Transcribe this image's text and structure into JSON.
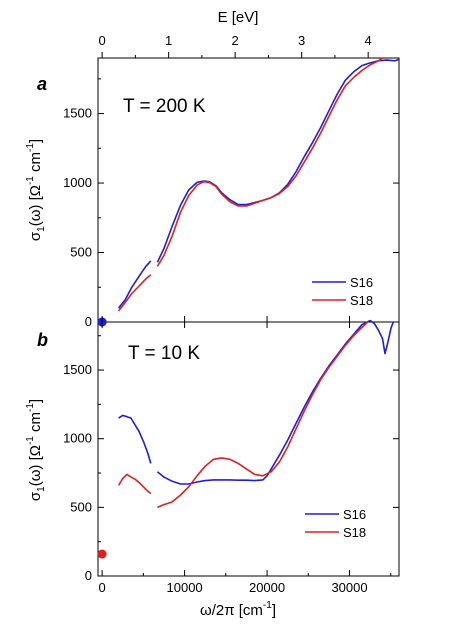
{
  "chart_data": {
    "type": "line",
    "top_axis": {
      "label": "E [eV]",
      "ticks": [
        {
          "value": 0,
          "label": "0"
        },
        {
          "value": 1,
          "label": "1"
        },
        {
          "value": 2,
          "label": "2"
        },
        {
          "value": 3,
          "label": "3"
        },
        {
          "value": 4,
          "label": "4"
        }
      ]
    },
    "x_axis": {
      "label_main": "ω/2π [cm",
      "label_sup": "-1",
      "label_end": "]",
      "range": [
        -500,
        36000
      ],
      "ticks": [
        {
          "value": 0,
          "label": "0"
        },
        {
          "value": 10000,
          "label": "10000"
        },
        {
          "value": 20000,
          "label": "20000"
        },
        {
          "value": 30000,
          "label": "30000"
        }
      ]
    },
    "y_axis_label": {
      "sigma": "σ",
      "sub": "1",
      "omega": "(ω) [Ω",
      "sup1": "-1",
      "cm": " cm",
      "sup2": "-1",
      "end": "]"
    },
    "panels": [
      {
        "letter": "a",
        "temperature": "T = 200 K",
        "ylim": [
          0,
          1900
        ],
        "yticks": [
          {
            "value": 0,
            "label": "0"
          },
          {
            "value": 500,
            "label": "500"
          },
          {
            "value": 1000,
            "label": "1000"
          },
          {
            "value": 1500,
            "label": "1500"
          }
        ],
        "series": [
          {
            "name": "S16",
            "color": "#1f1fd6",
            "segments": [
              [
                [
                  2000,
                  100
                ],
                [
                  2800,
                  160
                ],
                [
                  3600,
                  250
                ],
                [
                  4500,
                  330
                ],
                [
                  5300,
                  400
                ],
                [
                  5900,
                  440
                ]
              ],
              [
                [
                  6700,
                  430
                ],
                [
                  7500,
                  530
                ],
                [
                  8500,
                  690
                ],
                [
                  9500,
                  840
                ],
                [
                  10500,
                  950
                ],
                [
                  11500,
                  1005
                ],
                [
                  12300,
                  1015
                ],
                [
                  13000,
                  1010
                ],
                [
                  13800,
                  980
                ],
                [
                  14500,
                  930
                ],
                [
                  15500,
                  880
                ],
                [
                  16500,
                  845
                ],
                [
                  17500,
                  845
                ],
                [
                  18500,
                  860
                ],
                [
                  19500,
                  875
                ],
                [
                  20500,
                  895
                ],
                [
                  21500,
                  930
                ],
                [
                  22500,
                  990
                ],
                [
                  23500,
                  1080
                ],
                [
                  24500,
                  1190
                ],
                [
                  25500,
                  1290
                ],
                [
                  26500,
                  1400
                ],
                [
                  27500,
                  1520
                ],
                [
                  28500,
                  1640
                ],
                [
                  29500,
                  1740
                ],
                [
                  30500,
                  1800
                ],
                [
                  31500,
                  1845
                ],
                [
                  32500,
                  1865
                ],
                [
                  33500,
                  1880
                ],
                [
                  34500,
                  1885
                ],
                [
                  35500,
                  1880
                ],
                [
                  36000,
                  1890
                ]
              ]
            ]
          },
          {
            "name": "S18",
            "color": "#e02020",
            "segments": [
              [
                [
                  2000,
                  80
                ],
                [
                  2800,
                  140
                ],
                [
                  3600,
                  205
                ],
                [
                  4500,
                  260
                ],
                [
                  5300,
                  310
                ],
                [
                  5900,
                  340
                ]
              ],
              [
                [
                  6700,
                  400
                ],
                [
                  7500,
                  480
                ],
                [
                  8500,
                  620
                ],
                [
                  9500,
                  790
                ],
                [
                  10500,
                  910
                ],
                [
                  11500,
                  985
                ],
                [
                  12300,
                  1010
                ],
                [
                  13000,
                  1005
                ],
                [
                  13800,
                  975
                ],
                [
                  14500,
                  920
                ],
                [
                  15500,
                  865
                ],
                [
                  16500,
                  835
                ],
                [
                  17500,
                  835
                ],
                [
                  18500,
                  855
                ],
                [
                  19500,
                  875
                ],
                [
                  20500,
                  895
                ],
                [
                  21500,
                  925
                ],
                [
                  22500,
                  975
                ],
                [
                  23500,
                  1050
                ],
                [
                  24500,
                  1150
                ],
                [
                  25500,
                  1250
                ],
                [
                  26500,
                  1360
                ],
                [
                  27500,
                  1480
                ],
                [
                  28500,
                  1600
                ],
                [
                  29500,
                  1700
                ],
                [
                  30500,
                  1760
                ],
                [
                  31500,
                  1810
                ],
                [
                  32500,
                  1850
                ],
                [
                  33500,
                  1880
                ],
                [
                  34000,
                  1900
                ]
              ]
            ]
          }
        ],
        "dc_points": [
          {
            "x": 0,
            "y": 0,
            "color": "#e02020"
          }
        ],
        "legend": [
          {
            "label": "S16",
            "color": "#1f1fd6"
          },
          {
            "label": "S18",
            "color": "#e02020"
          }
        ]
      },
      {
        "letter": "b",
        "temperature": "T = 10 K",
        "ylim": [
          0,
          1850
        ],
        "yticks": [
          {
            "value": 0,
            "label": "0"
          },
          {
            "value": 500,
            "label": "500"
          },
          {
            "value": 1000,
            "label": "1000"
          },
          {
            "value": 1500,
            "label": "1500"
          }
        ],
        "series": [
          {
            "name": "S16",
            "color": "#1f1fd6",
            "segments": [
              [
                [
                  2000,
                  1150
                ],
                [
                  2500,
                  1170
                ],
                [
                  3000,
                  1160
                ],
                [
                  3500,
                  1150
                ],
                [
                  4000,
                  1100
                ],
                [
                  4500,
                  1050
                ],
                [
                  5000,
                  980
                ],
                [
                  5500,
                  900
                ],
                [
                  5900,
                  820
                ]
              ],
              [
                [
                  6700,
                  760
                ],
                [
                  7500,
                  720
                ],
                [
                  8500,
                  690
                ],
                [
                  9500,
                  670
                ],
                [
                  10500,
                  670
                ],
                [
                  11500,
                  685
                ],
                [
                  12500,
                  695
                ],
                [
                  13500,
                  700
                ],
                [
                  14500,
                  700
                ],
                [
                  15500,
                  700
                ],
                [
                  16500,
                  698
                ],
                [
                  17500,
                  698
                ],
                [
                  18500,
                  695
                ],
                [
                  19500,
                  700
                ],
                [
                  20000,
                  730
                ],
                [
                  20500,
                  780
                ],
                [
                  21500,
                  880
                ],
                [
                  22500,
                  990
                ],
                [
                  23500,
                  1110
                ],
                [
                  24500,
                  1230
                ],
                [
                  25500,
                  1340
                ],
                [
                  26500,
                  1440
                ],
                [
                  27500,
                  1530
                ],
                [
                  28500,
                  1610
                ],
                [
                  29500,
                  1690
                ],
                [
                  30500,
                  1760
                ],
                [
                  31500,
                  1830
                ],
                [
                  32500,
                  1860
                ],
                [
                  33000,
                  1840
                ],
                [
                  33500,
                  1790
                ],
                [
                  34000,
                  1730
                ],
                [
                  34300,
                  1620
                ],
                [
                  34600,
                  1690
                ],
                [
                  35000,
                  1800
                ],
                [
                  35300,
                  1850
                ]
              ]
            ]
          },
          {
            "name": "S18",
            "color": "#e02020",
            "segments": [
              [
                [
                  2000,
                  660
                ],
                [
                  2500,
                  710
                ],
                [
                  3000,
                  740
                ],
                [
                  3500,
                  720
                ],
                [
                  4000,
                  705
                ],
                [
                  4500,
                  680
                ],
                [
                  5000,
                  650
                ],
                [
                  5500,
                  620
                ],
                [
                  5900,
                  600
                ]
              ],
              [
                [
                  6700,
                  500
                ],
                [
                  7500,
                  520
                ],
                [
                  8500,
                  540
                ],
                [
                  9500,
                  590
                ],
                [
                  10500,
                  650
                ],
                [
                  11500,
                  730
                ],
                [
                  12500,
                  800
                ],
                [
                  13500,
                  850
                ],
                [
                  14500,
                  860
                ],
                [
                  15500,
                  850
                ],
                [
                  16500,
                  820
                ],
                [
                  17500,
                  780
                ],
                [
                  18500,
                  740
                ],
                [
                  19500,
                  730
                ],
                [
                  20500,
                  760
                ],
                [
                  21500,
                  830
                ],
                [
                  22500,
                  940
                ],
                [
                  23500,
                  1070
                ],
                [
                  24500,
                  1200
                ],
                [
                  25500,
                  1320
                ],
                [
                  26500,
                  1430
                ],
                [
                  27500,
                  1520
                ],
                [
                  28500,
                  1600
                ],
                [
                  29500,
                  1680
                ],
                [
                  30500,
                  1750
                ],
                [
                  31500,
                  1810
                ],
                [
                  32200,
                  1850
                ]
              ]
            ]
          }
        ],
        "dc_points": [
          {
            "x": 0,
            "y": 1850,
            "color": "#1f1fd6"
          },
          {
            "x": 0,
            "y": 160,
            "color": "#e02020"
          }
        ],
        "legend": [
          {
            "label": "S16",
            "color": "#1f1fd6"
          },
          {
            "label": "S18",
            "color": "#e02020"
          }
        ]
      }
    ]
  }
}
